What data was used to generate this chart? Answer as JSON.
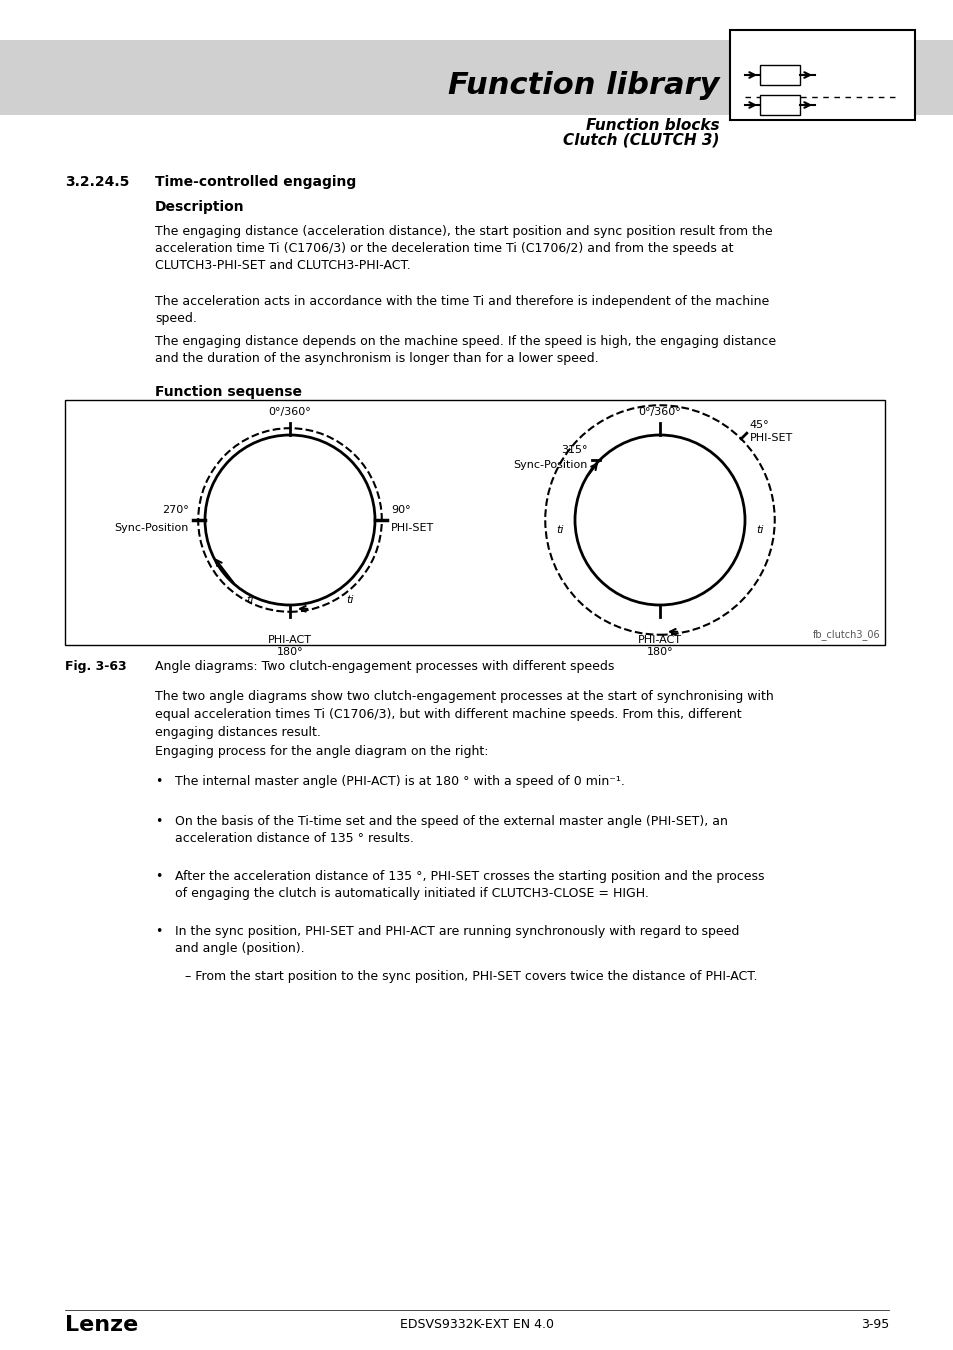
{
  "page_bg": "#ffffff",
  "header_bg": "#d3d3d3",
  "title_main": "Function library",
  "title_sub1": "Function blocks",
  "title_sub2": "Clutch (CLUTCH 3)",
  "section_num": "3.2.24.5",
  "section_title": "Time-controlled engaging",
  "subsection_title": "Description",
  "para1": "The engaging distance (acceleration distance), the start position and sync position result from the\nacceleration time Ti (C1706/3) or the deceleration time Ti (C1706/2) and from the speeds at\nCLUTCH3-PHI-SET and CLUTCH3-PHI-ACT.",
  "para2": "The acceleration acts in accordance with the time Ti and therefore is independent of the machine\nspeed.",
  "para3": "The engaging distance depends on the machine speed. If the speed is high, the engaging distance\nand the duration of the asynchronism is longer than for a lower speed.",
  "func_seq_title": "Function sequense",
  "diagram_label": "fb_clutch3_06",
  "fig_label": "Fig. 3-63",
  "fig_caption": "Angle diagrams: Two clutch-engagement processes with different speeds",
  "desc_para1": "The two angle diagrams show two clutch-engagement processes at the start of synchronising with\nequal acceleration times Ti (C1706/3), but with different machine speeds. From this, different\nengaging distances result.",
  "desc_para2": "Engaging process for the angle diagram on the right:",
  "bullet1": "The internal master angle (PHI-ACT) is at 180 ° with a speed of 0 min⁻¹.",
  "bullet2": "On the basis of the Ti-time set and the speed of the external master angle (PHI-SET), an\nacceleration distance of 135 ° results.",
  "bullet3": "After the acceleration distance of 135 °, PHI-SET crosses the starting position and the process\nof engaging the clutch is automatically initiated if CLUTCH3-CLOSE = HIGH.",
  "bullet4": "In the sync position, PHI-SET and PHI-ACT are running synchronously with regard to speed\nand angle (position).",
  "sub_bullet1": "– From the start position to the sync position, PHI-SET covers twice the distance of PHI-ACT.",
  "footer_logo": "Lenze",
  "footer_doc": "EDSVS9332K-EXT EN 4.0",
  "footer_page": "3-95"
}
